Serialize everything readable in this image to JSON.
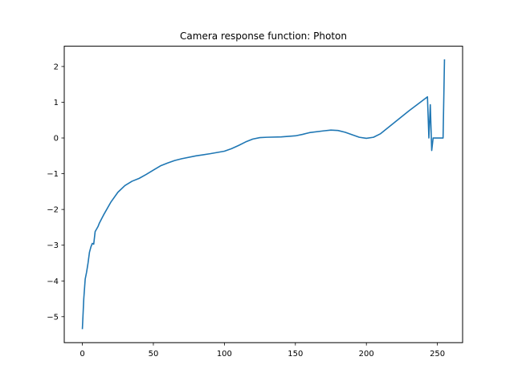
{
  "chart_data": {
    "type": "line",
    "title": "Camera response function: Photon",
    "xlabel": "",
    "ylabel": "",
    "xlim": [
      -12.75,
      267.75
    ],
    "ylim": [
      -5.727,
      2.568
    ],
    "xticks": [
      0,
      50,
      100,
      150,
      200,
      250
    ],
    "yticks": [
      -5,
      -4,
      -3,
      -2,
      -1,
      0,
      1,
      2
    ],
    "grid": false,
    "legend": "none",
    "series": [
      {
        "color": "#1f77b4",
        "x": [
          0,
          1,
          2,
          3,
          4,
          5,
          6,
          7,
          8,
          9,
          10,
          11,
          12,
          15,
          20,
          25,
          30,
          35,
          40,
          45,
          50,
          55,
          60,
          65,
          70,
          80,
          90,
          100,
          105,
          110,
          115,
          120,
          125,
          130,
          140,
          150,
          155,
          160,
          170,
          175,
          180,
          185,
          190,
          195,
          200,
          205,
          210,
          220,
          230,
          243,
          244,
          245,
          246,
          247,
          248,
          249,
          250,
          251,
          252,
          253,
          254,
          255
        ],
        "y": [
          -5.35,
          -4.5,
          -3.95,
          -3.75,
          -3.5,
          -3.2,
          -3.05,
          -2.95,
          -2.97,
          -2.62,
          -2.55,
          -2.48,
          -2.38,
          -2.15,
          -1.8,
          -1.52,
          -1.33,
          -1.21,
          -1.13,
          -1.02,
          -0.9,
          -0.78,
          -0.7,
          -0.63,
          -0.58,
          -0.5,
          -0.44,
          -0.37,
          -0.3,
          -0.21,
          -0.11,
          -0.03,
          0.01,
          0.02,
          0.03,
          0.06,
          0.1,
          0.15,
          0.2,
          0.22,
          0.21,
          0.16,
          0.09,
          0.02,
          -0.01,
          0.02,
          0.12,
          0.44,
          0.76,
          1.15,
          0.0,
          0.93,
          -0.35,
          0.0,
          0.0,
          0.0,
          0.0,
          0.0,
          0.0,
          0.0,
          0.0,
          2.2
        ]
      }
    ]
  }
}
